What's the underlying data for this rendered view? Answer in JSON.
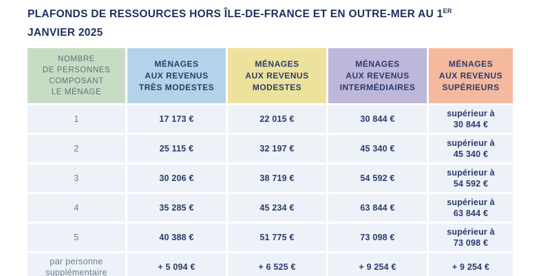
{
  "theme": {
    "title_color": "#212e5c",
    "value_text_color": "#2b3a6b",
    "muted_text_color": "#6c7d92",
    "row_background": "#edf1f8",
    "header_colors": {
      "household_size": "#c7ddc3",
      "tres_modestes": "#b5d3e8",
      "modestes": "#ece29c",
      "intermediaires": "#bdb7d9",
      "superieurs": "#f5b99e"
    }
  },
  "title": {
    "line1": "PLAFONDS DE RESSOURCES HORS ÎLE-DE-FRANCE ET EN OUTRE-MER AU 1",
    "superscript": "ER",
    "line2": "JANVIER 2025"
  },
  "table": {
    "columns": [
      {
        "header": "NOMBRE\nDE PERSONNES\nCOMPOSANT\nLE MÉNAGE"
      },
      {
        "header": "MÉNAGES\nAUX REVENUS\nTRÈS MODESTES"
      },
      {
        "header": "MÉNAGES\nAUX REVENUS\nMODESTES"
      },
      {
        "header": "MÉNAGES\nAUX REVENUS\nINTERMÉDIAIRES"
      },
      {
        "header": "MÉNAGES\nAUX REVENUS\nSUPÉRIEURS"
      }
    ],
    "rows": [
      {
        "cells": [
          "1",
          "17 173 €",
          "22 015 €",
          "30 844 €",
          "supérieur à\n30 844 €"
        ]
      },
      {
        "cells": [
          "2",
          "25 115 €",
          "32 197 €",
          "45 340 €",
          "supérieur à\n45 340 €"
        ]
      },
      {
        "cells": [
          "3",
          "30 206 €",
          "38 719 €",
          "54 592 €",
          "supérieur à\n54 592 €"
        ]
      },
      {
        "cells": [
          "4",
          "35 285 €",
          "45 234 €",
          "63 844 €",
          "supérieur à\n63 844 €"
        ]
      },
      {
        "cells": [
          "5",
          "40 388 €",
          "51 775 €",
          "73 098 €",
          "supérieur à\n73 098 €"
        ]
      },
      {
        "cells": [
          "par personne\nsupplémentaire",
          "+ 5 094 €",
          "+ 6 525 €",
          "+ 9 254 €",
          "+ 9 254 €"
        ]
      }
    ]
  }
}
